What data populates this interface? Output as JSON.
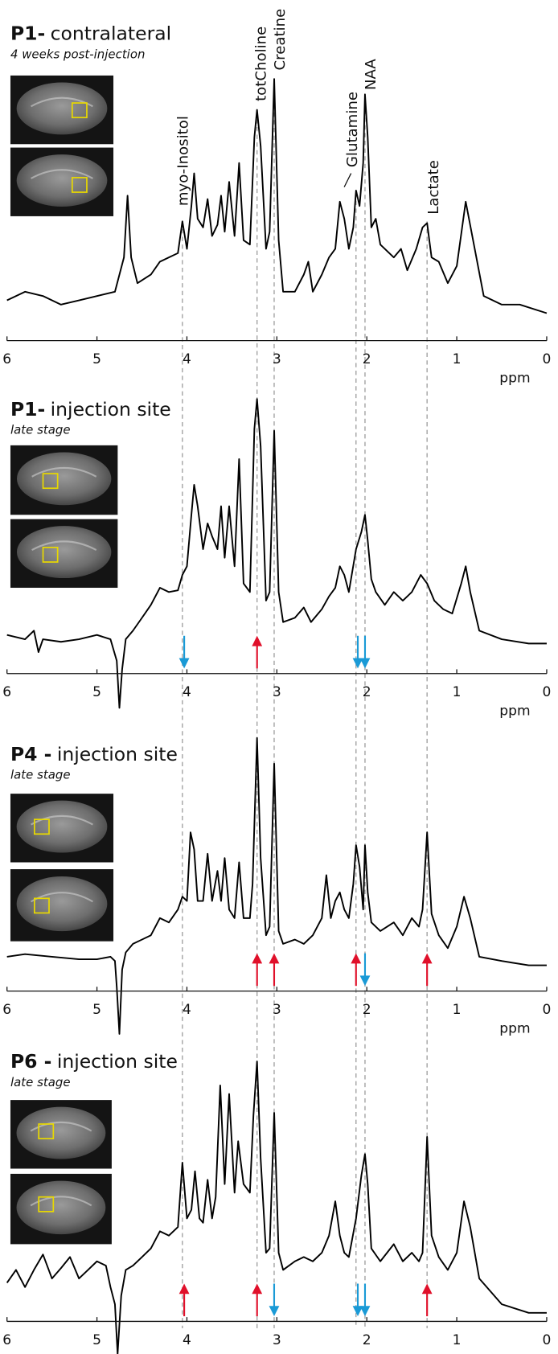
{
  "reference_lines": [
    {
      "label": "myo-Inositol",
      "ppm": 4.05
    },
    {
      "label": "totCholine",
      "ppm": 3.22
    },
    {
      "label": "Creatine",
      "ppm": 3.03
    },
    {
      "label": "Glutamine",
      "ppm": 2.12
    },
    {
      "label": "NAA",
      "ppm": 2.02
    },
    {
      "label": "Lactate",
      "ppm": 1.33
    }
  ],
  "chart_data": [
    {
      "type": "line",
      "panel": "P1-",
      "title": "contralateral",
      "subtitle": "4 weeks post-injection",
      "xlabel": "ppm",
      "color": "#000000",
      "xlim": [
        6,
        0
      ],
      "xticks": [
        6,
        5,
        4,
        3,
        2,
        1,
        0
      ],
      "ylim": [
        0,
        320
      ],
      "x": [
        6.0,
        5.8,
        5.6,
        5.4,
        5.2,
        5.0,
        4.8,
        4.7,
        4.66,
        4.62,
        4.55,
        4.4,
        4.3,
        4.2,
        4.1,
        4.05,
        4.0,
        3.95,
        3.92,
        3.88,
        3.82,
        3.77,
        3.72,
        3.66,
        3.62,
        3.58,
        3.53,
        3.47,
        3.42,
        3.37,
        3.3,
        3.25,
        3.22,
        3.18,
        3.12,
        3.08,
        3.03,
        2.98,
        2.93,
        2.8,
        2.7,
        2.65,
        2.6,
        2.5,
        2.42,
        2.35,
        2.3,
        2.25,
        2.2,
        2.15,
        2.12,
        2.08,
        2.04,
        2.02,
        1.99,
        1.95,
        1.9,
        1.85,
        1.7,
        1.62,
        1.55,
        1.45,
        1.38,
        1.33,
        1.28,
        1.2,
        1.1,
        1.0,
        0.9,
        0.8,
        0.7,
        0.5,
        0.3,
        0.0
      ],
      "values": [
        47,
        57,
        52,
        42,
        47,
        52,
        57,
        97,
        169,
        97,
        67,
        77,
        92,
        97,
        102,
        139,
        107,
        157,
        195,
        142,
        132,
        165,
        122,
        135,
        169,
        127,
        185,
        122,
        207,
        117,
        112,
        237,
        269,
        227,
        107,
        127,
        305,
        117,
        57,
        57,
        77,
        92,
        57,
        77,
        97,
        107,
        162,
        142,
        107,
        132,
        175,
        157,
        207,
        287,
        237,
        132,
        142,
        112,
        97,
        107,
        82,
        107,
        132,
        137,
        97,
        92,
        67,
        87,
        162,
        107,
        52,
        42,
        42,
        32
      ],
      "markers": []
    },
    {
      "type": "line",
      "panel": "P1-",
      "title": "injection site",
      "subtitle": "late stage",
      "xlabel": "ppm",
      "color": "#000000",
      "xlim": [
        6,
        0
      ],
      "xticks": [
        6,
        5,
        4,
        3,
        2,
        1,
        0
      ],
      "ylim": [
        -45,
        325
      ],
      "x": [
        6.0,
        5.8,
        5.7,
        5.65,
        5.6,
        5.4,
        5.2,
        5.0,
        4.85,
        4.78,
        4.75,
        4.72,
        4.68,
        4.6,
        4.5,
        4.4,
        4.3,
        4.2,
        4.1,
        4.05,
        4.0,
        3.95,
        3.92,
        3.88,
        3.82,
        3.77,
        3.72,
        3.66,
        3.62,
        3.58,
        3.53,
        3.47,
        3.42,
        3.37,
        3.3,
        3.25,
        3.22,
        3.18,
        3.12,
        3.08,
        3.03,
        2.98,
        2.93,
        2.8,
        2.7,
        2.62,
        2.5,
        2.42,
        2.35,
        2.3,
        2.25,
        2.2,
        2.12,
        2.06,
        2.02,
        1.99,
        1.95,
        1.9,
        1.8,
        1.7,
        1.6,
        1.5,
        1.4,
        1.33,
        1.25,
        1.15,
        1.05,
        0.95,
        0.9,
        0.85,
        0.75,
        0.5,
        0.2,
        0.0
      ],
      "values": [
        45,
        40,
        50,
        25,
        40,
        37,
        40,
        45,
        40,
        15,
        -40,
        5,
        40,
        50,
        65,
        80,
        100,
        95,
        97,
        115,
        125,
        185,
        220,
        195,
        145,
        175,
        160,
        145,
        195,
        135,
        195,
        125,
        250,
        105,
        95,
        285,
        320,
        265,
        85,
        95,
        283,
        95,
        60,
        65,
        77,
        60,
        75,
        90,
        100,
        125,
        115,
        95,
        145,
        165,
        185,
        155,
        110,
        95,
        80,
        95,
        85,
        95,
        115,
        105,
        85,
        75,
        70,
        105,
        125,
        95,
        50,
        40,
        35,
        35
      ],
      "markers": [
        {
          "x": 4.03,
          "direction": "down",
          "color": "#1a9ad6"
        },
        {
          "x": 3.22,
          "direction": "up",
          "color": "#e0102a"
        },
        {
          "x": 2.1,
          "direction": "down",
          "color": "#1a9ad6"
        },
        {
          "x": 2.02,
          "direction": "down",
          "color": "#1a9ad6"
        }
      ]
    },
    {
      "type": "line",
      "panel": "P4 -",
      "title": "injection site",
      "subtitle": "late stage",
      "xlabel": "ppm",
      "color": "#000000",
      "xlim": [
        6,
        0
      ],
      "xticks": [
        6,
        5,
        4,
        3,
        2,
        1,
        0
      ],
      "ylim": [
        -55,
        300
      ],
      "x": [
        6.0,
        5.8,
        5.5,
        5.2,
        5.0,
        4.85,
        4.8,
        4.78,
        4.75,
        4.72,
        4.68,
        4.6,
        4.5,
        4.4,
        4.3,
        4.2,
        4.1,
        4.05,
        4.0,
        3.96,
        3.92,
        3.88,
        3.82,
        3.77,
        3.72,
        3.66,
        3.62,
        3.58,
        3.53,
        3.47,
        3.42,
        3.37,
        3.3,
        3.27,
        3.22,
        3.18,
        3.12,
        3.08,
        3.03,
        2.98,
        2.93,
        2.8,
        2.7,
        2.6,
        2.5,
        2.45,
        2.4,
        2.35,
        2.3,
        2.25,
        2.2,
        2.15,
        2.12,
        2.08,
        2.04,
        2.02,
        1.99,
        1.95,
        1.85,
        1.7,
        1.6,
        1.5,
        1.42,
        1.38,
        1.33,
        1.28,
        1.2,
        1.1,
        1.0,
        0.92,
        0.85,
        0.75,
        0.5,
        0.2,
        0.0
      ],
      "values": [
        40,
        43,
        40,
        37,
        37,
        40,
        35,
        5,
        -50,
        25,
        45,
        55,
        60,
        65,
        85,
        80,
        95,
        110,
        105,
        185,
        165,
        105,
        105,
        160,
        105,
        140,
        105,
        155,
        95,
        85,
        150,
        85,
        85,
        125,
        295,
        155,
        65,
        75,
        265,
        70,
        55,
        60,
        55,
        65,
        85,
        135,
        85,
        105,
        115,
        95,
        85,
        125,
        170,
        145,
        95,
        170,
        115,
        80,
        70,
        80,
        65,
        85,
        75,
        95,
        185,
        90,
        65,
        50,
        75,
        110,
        85,
        40,
        35,
        30,
        30
      ],
      "markers": [
        {
          "x": 3.22,
          "direction": "up",
          "color": "#e0102a"
        },
        {
          "x": 3.03,
          "direction": "up",
          "color": "#e0102a"
        },
        {
          "x": 2.12,
          "direction": "up",
          "color": "#e0102a"
        },
        {
          "x": 2.02,
          "direction": "down",
          "color": "#1a9ad6"
        },
        {
          "x": 1.33,
          "direction": "up",
          "color": "#e0102a"
        }
      ]
    },
    {
      "type": "line",
      "panel": "P6 -",
      "title": "injection site",
      "subtitle": "late stage",
      "xlabel": "ppm",
      "color": "#000000",
      "xlim": [
        6,
        0
      ],
      "xticks": [
        6,
        5,
        4,
        3,
        2,
        1,
        0
      ],
      "ylim": [
        -45,
        310
      ],
      "x": [
        6.0,
        5.9,
        5.8,
        5.7,
        5.6,
        5.5,
        5.4,
        5.3,
        5.2,
        5.1,
        5.0,
        4.9,
        4.85,
        4.8,
        4.77,
        4.73,
        4.68,
        4.6,
        4.5,
        4.4,
        4.3,
        4.2,
        4.1,
        4.05,
        4.0,
        3.95,
        3.91,
        3.86,
        3.82,
        3.77,
        3.72,
        3.68,
        3.63,
        3.58,
        3.53,
        3.47,
        3.43,
        3.37,
        3.3,
        3.26,
        3.22,
        3.18,
        3.12,
        3.08,
        3.03,
        2.98,
        2.93,
        2.8,
        2.7,
        2.6,
        2.5,
        2.42,
        2.35,
        2.3,
        2.25,
        2.2,
        2.12,
        2.06,
        2.02,
        1.99,
        1.95,
        1.85,
        1.7,
        1.6,
        1.5,
        1.42,
        1.38,
        1.33,
        1.28,
        1.2,
        1.1,
        1.0,
        0.92,
        0.85,
        0.75,
        0.5,
        0.2,
        0.0
      ],
      "values": [
        45,
        60,
        40,
        60,
        78,
        50,
        62,
        75,
        50,
        60,
        70,
        65,
        40,
        20,
        -38,
        30,
        60,
        65,
        75,
        85,
        105,
        100,
        110,
        185,
        120,
        130,
        175,
        120,
        115,
        165,
        120,
        145,
        275,
        160,
        265,
        150,
        210,
        160,
        150,
        240,
        303,
        190,
        80,
        85,
        243,
        80,
        60,
        70,
        75,
        70,
        80,
        100,
        140,
        100,
        80,
        75,
        120,
        170,
        195,
        160,
        85,
        70,
        90,
        70,
        80,
        70,
        80,
        215,
        100,
        75,
        60,
        80,
        140,
        110,
        50,
        20,
        10,
        10
      ],
      "markers": [
        {
          "x": 4.03,
          "direction": "up",
          "color": "#e0102a"
        },
        {
          "x": 3.22,
          "direction": "up",
          "color": "#e0102a"
        },
        {
          "x": 3.03,
          "direction": "down",
          "color": "#1a9ad6"
        },
        {
          "x": 2.1,
          "direction": "down",
          "color": "#1a9ad6"
        },
        {
          "x": 2.02,
          "direction": "down",
          "color": "#1a9ad6"
        },
        {
          "x": 1.33,
          "direction": "up",
          "color": "#e0102a"
        }
      ]
    }
  ]
}
